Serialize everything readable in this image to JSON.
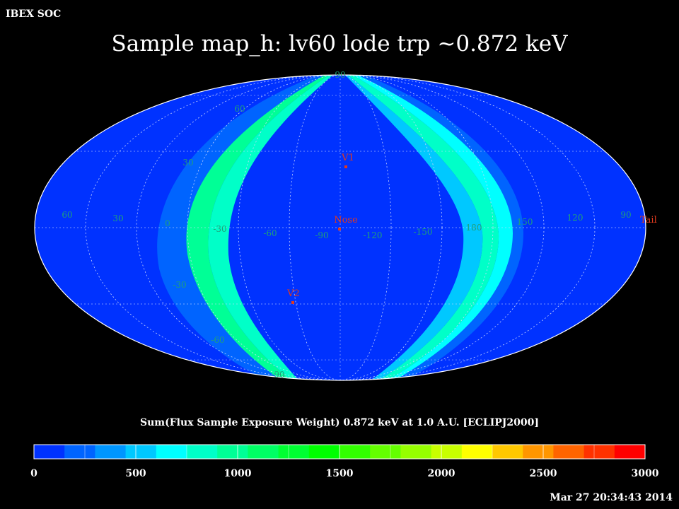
{
  "header": {
    "organization": "IBEX SOC",
    "title": "Sample map_h: lv60 lode trp ~0.872 keV"
  },
  "colorbar": {
    "label": "Sum(Flux Sample Exposure Weight)  0.872 keV at 1.0 A.U. [ECLIPJ2000]",
    "ticks": [
      "0",
      "500",
      "1000",
      "1500",
      "2000",
      "2500",
      "3000"
    ],
    "range": [
      0,
      3000
    ],
    "colors": [
      "#0032ff",
      "#0064ff",
      "#0096ff",
      "#00c8ff",
      "#00ffff",
      "#00ffc8",
      "#00ff96",
      "#00ff64",
      "#00ff32",
      "#00ff00",
      "#32ff00",
      "#64ff00",
      "#96ff00",
      "#c8ff00",
      "#ffff00",
      "#ffc800",
      "#ff9600",
      "#ff6400",
      "#ff3200",
      "#ff0000"
    ]
  },
  "footer": {
    "timestamp": "Mar 27 20:34:43 2014"
  },
  "map": {
    "projection": "Mollweide (Aitoff-like), ECLIPJ2000",
    "background_color": "#0032ff",
    "grid_label_color": "#1fa07a",
    "marker_color": "#e03a1e",
    "meridian_labels": [
      "60",
      "30",
      "0",
      "-30",
      "-60",
      "-90",
      "-120",
      "-150",
      "180",
      "150",
      "120",
      "90"
    ],
    "parallel_labels": [
      "90",
      "60",
      "30",
      "-30",
      "-60",
      "-90"
    ],
    "markers": [
      {
        "name": "V1"
      },
      {
        "name": "Nose"
      },
      {
        "name": "V2"
      },
      {
        "name": "Tail"
      }
    ],
    "ribbon_colors": {
      "left_outer": "#0064ff",
      "left_mid": "#00ff96",
      "left_inner": "#00ffc8",
      "right_outer": "#0064ff",
      "right_mid": "#00ffff",
      "right_inner": "#00ffc8",
      "right_core": "#00c8ff"
    }
  }
}
